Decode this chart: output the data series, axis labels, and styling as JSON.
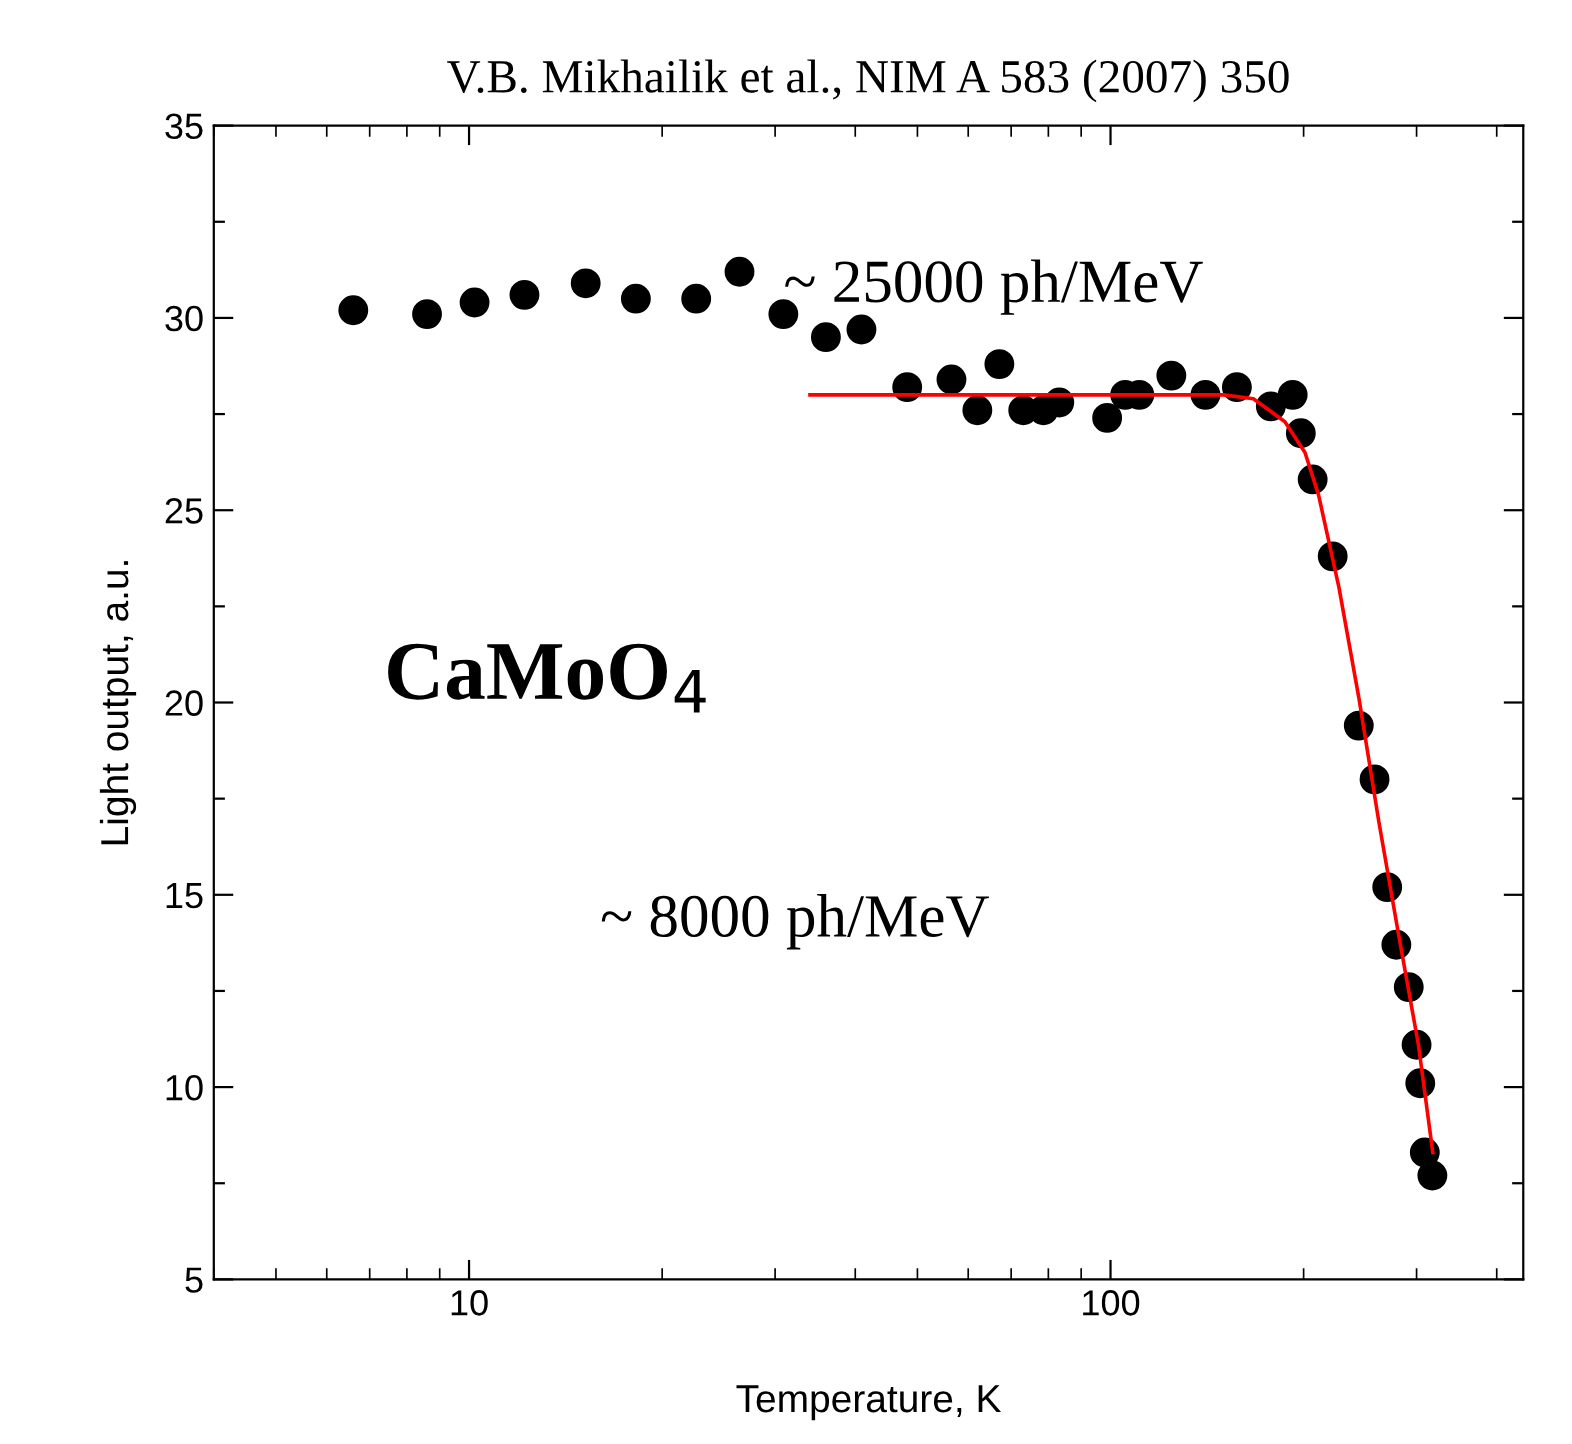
{
  "chart_data": {
    "type": "scatter",
    "title": "V.B. Mikhailik et al., NIM A 583 (2007) 350",
    "xlabel": "Temperature, K",
    "ylabel": "Light output, a.u.",
    "log": "x",
    "xlim": [
      4,
      440
    ],
    "xticks": [
      10,
      100
    ],
    "ylim": [
      5,
      35
    ],
    "yticks": [
      5,
      {
        "value": 7.5,
        "label": null
      },
      10,
      {
        "value": 12.5,
        "label": null
      },
      15,
      {
        "value": 17.5,
        "label": null
      },
      20,
      {
        "value": 22.5,
        "label": null
      },
      25,
      {
        "value": 27.5,
        "label": null
      },
      30,
      {
        "value": 32.5,
        "label": null
      },
      35
    ],
    "grid": false,
    "legend": false,
    "annotations": [
      "~ 25000 ph/MeV",
      "~ 8000 ph/MeV",
      "CaMoO$_{4}$"
    ],
    "series": [
      {
        "type": "scatter",
        "color": "#000000",
        "marker": "circle",
        "x": [
          6.6,
          8.6,
          10.2,
          12.2,
          15.2,
          18.2,
          22.6,
          26.4,
          30.9,
          36.0,
          40.9,
          48.2,
          56.5,
          62.0,
          67.1,
          73.1,
          78.6,
          83.2,
          98.8,
          105.4,
          110.9,
          124.4,
          140.6,
          157.4,
          177.8,
          192.3,
          198,
          206.6,
          222,
          243.8,
          258,
          270,
          279,
          291.7,
          300,
          304,
          309,
          317.5
        ],
        "values": [
          30.2,
          30.1,
          30.4,
          30.6,
          30.9,
          30.5,
          30.5,
          31.2,
          30.1,
          29.5,
          29.7,
          28.2,
          28.4,
          27.6,
          28.8,
          27.6,
          27.6,
          27.8,
          27.4,
          28.0,
          28.0,
          28.5,
          28.0,
          28.2,
          27.7,
          28.0,
          27.0,
          25.8,
          23.8,
          19.4,
          18.0,
          15.2,
          13.7,
          12.6,
          11.1,
          10.1,
          8.3,
          7.7
        ]
      },
      {
        "type": "line",
        "color": "#ff0000",
        "marker": "none",
        "line_style": "solid",
        "x": [
          34,
          100,
          150,
          167,
          187,
          201,
          211,
          227,
          244,
          262,
          281,
          302,
          318
        ],
        "values": [
          28.0,
          28.0,
          28.0,
          27.9,
          27.3,
          26.5,
          25.4,
          23.0,
          20.1,
          16.9,
          14.0,
          11.1,
          8.3
        ]
      }
    ]
  }
}
